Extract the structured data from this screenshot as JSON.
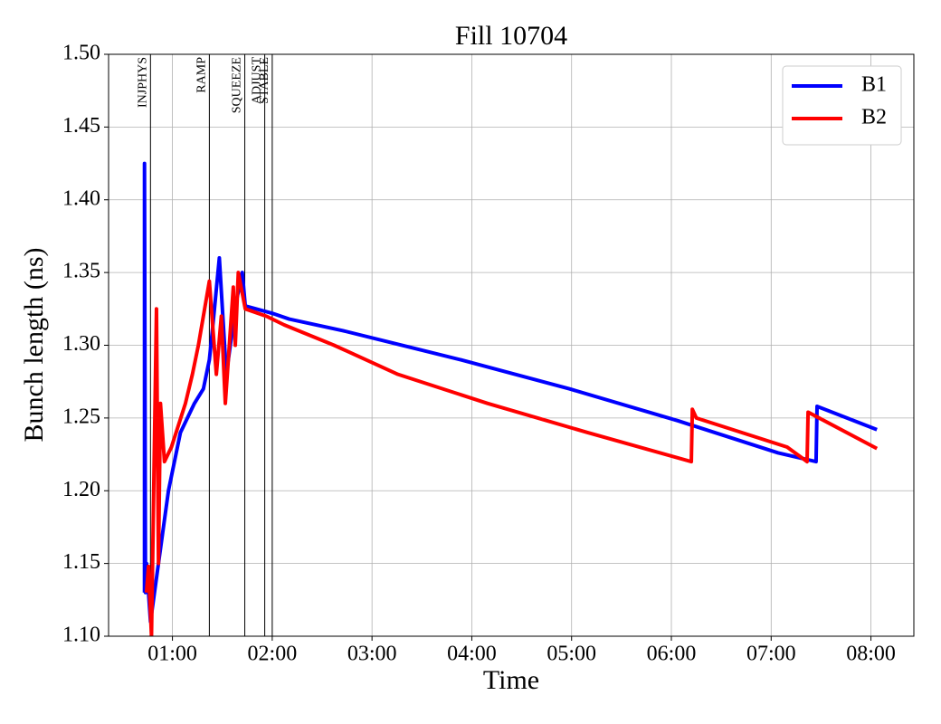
{
  "chart_data": {
    "type": "line",
    "title": "Fill 10704",
    "xlabel": "Time",
    "ylabel": "Bunch length (ns)",
    "xlim": [
      0.36,
      8.43
    ],
    "ylim": [
      1.1,
      1.5
    ],
    "xticks": [
      {
        "value": 1,
        "label": "01:00"
      },
      {
        "value": 2,
        "label": "02:00"
      },
      {
        "value": 3,
        "label": "03:00"
      },
      {
        "value": 4,
        "label": "04:00"
      },
      {
        "value": 5,
        "label": "05:00"
      },
      {
        "value": 6,
        "label": "06:00"
      },
      {
        "value": 7,
        "label": "07:00"
      },
      {
        "value": 8,
        "label": "08:00"
      }
    ],
    "yticks": [
      {
        "value": 1.1,
        "label": "1.10"
      },
      1.15,
      {
        "value": 1.2,
        "label": "1.20"
      },
      1.25,
      {
        "value": 1.3,
        "label": "1.30"
      },
      1.35,
      {
        "value": 1.4,
        "label": "1.40"
      },
      1.45,
      {
        "value": 1.5,
        "label": "1.50"
      }
    ],
    "grid": true,
    "legend": "upper right",
    "phases": [
      {
        "label": "INJPHYS",
        "x": 0.78
      },
      {
        "label": "RAMP",
        "x": 1.37
      },
      {
        "label": "SQUEEZE",
        "x": 1.725
      },
      {
        "label": "ADJUST",
        "x": 1.925
      },
      {
        "label": "STABLE",
        "x": 2.0
      }
    ],
    "series": [
      {
        "name": "B1",
        "color": "#0000ff",
        "x": [
          0.72,
          0.72,
          0.73,
          0.74,
          0.78,
          0.86,
          0.96,
          1.08,
          1.22,
          1.31,
          1.37,
          1.4,
          1.47,
          1.54,
          1.64,
          1.7,
          1.73,
          2.0,
          2.17,
          2.71,
          3.89,
          4.98,
          6.07,
          7.07,
          7.45,
          7.46,
          8.06
        ],
        "values": [
          1.13,
          1.425,
          1.13,
          1.15,
          1.11,
          1.15,
          1.2,
          1.24,
          1.26,
          1.27,
          1.29,
          1.31,
          1.36,
          1.28,
          1.33,
          1.35,
          1.327,
          1.322,
          1.318,
          1.31,
          1.29,
          1.27,
          1.248,
          1.226,
          1.22,
          1.258,
          1.242
        ]
      },
      {
        "name": "B2",
        "color": "#ff0000",
        "x": [
          0.74,
          0.76,
          0.79,
          0.84,
          0.86,
          0.88,
          0.92,
          0.99,
          1.13,
          1.2,
          1.26,
          1.37,
          1.44,
          1.49,
          1.53,
          1.61,
          1.63,
          1.66,
          1.73,
          1.94,
          2.12,
          2.62,
          3.26,
          4.16,
          5.16,
          6.2,
          6.21,
          6.25,
          7.16,
          7.36,
          7.37,
          8.06
        ],
        "values": [
          1.13,
          1.148,
          1.1,
          1.325,
          1.15,
          1.26,
          1.22,
          1.23,
          1.26,
          1.28,
          1.3,
          1.344,
          1.28,
          1.32,
          1.26,
          1.34,
          1.3,
          1.35,
          1.325,
          1.32,
          1.314,
          1.3,
          1.28,
          1.26,
          1.24,
          1.22,
          1.256,
          1.25,
          1.23,
          1.22,
          1.254,
          1.229
        ]
      }
    ]
  }
}
